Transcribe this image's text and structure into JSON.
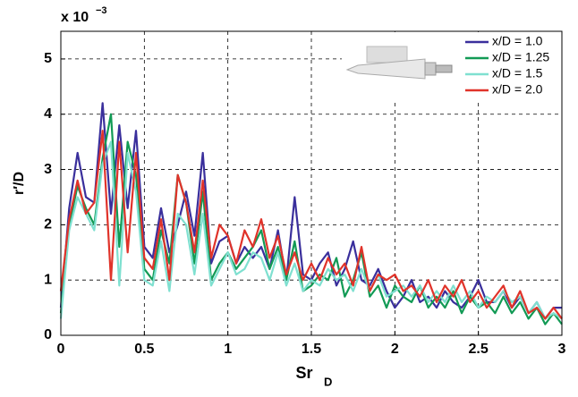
{
  "chart_data": {
    "type": "line",
    "ylabel": "r′/D",
    "xlabel": "Sr",
    "xlabel_subscript": "D",
    "y_multiplier": "x 10",
    "y_multiplier_exponent": "−3",
    "x": [
      0,
      0.05,
      0.1,
      0.15,
      0.2,
      0.25,
      0.3,
      0.35,
      0.4,
      0.45,
      0.5,
      0.55,
      0.6,
      0.65,
      0.7,
      0.75,
      0.8,
      0.85,
      0.9,
      0.95,
      1,
      1.05,
      1.1,
      1.15,
      1.2,
      1.25,
      1.3,
      1.35,
      1.4,
      1.45,
      1.5,
      1.55,
      1.6,
      1.65,
      1.7,
      1.75,
      1.8,
      1.85,
      1.9,
      1.95,
      2,
      2.05,
      2.1,
      2.15,
      2.2,
      2.25,
      2.3,
      2.35,
      2.4,
      2.45,
      2.5,
      2.55,
      2.6,
      2.65,
      2.7,
      2.75,
      2.8,
      2.85,
      2.9,
      2.95,
      3
    ],
    "series": [
      {
        "name": "x/D = 1.0",
        "color": "#3a2f9c",
        "values": [
          0.5,
          2.3,
          3.3,
          2.5,
          2.4,
          4.2,
          2.2,
          3.8,
          2.3,
          3.7,
          1.6,
          1.4,
          2.3,
          1.5,
          2.0,
          2.6,
          1.8,
          3.3,
          1.3,
          1.7,
          1.8,
          1.3,
          1.6,
          1.4,
          1.6,
          1.2,
          1.9,
          1.0,
          2.5,
          1.1,
          1.0,
          1.3,
          1.5,
          0.9,
          1.2,
          1.7,
          1.0,
          0.9,
          1.2,
          0.8,
          0.5,
          0.7,
          1.0,
          0.6,
          0.7,
          0.5,
          0.8,
          0.6,
          0.5,
          0.7,
          1.0,
          0.6,
          0.6,
          0.8,
          0.5,
          0.7,
          0.4,
          0.6,
          0.3,
          0.5,
          0.5
        ]
      },
      {
        "name": "x/D = 1.25",
        "color": "#129a55",
        "values": [
          0.4,
          2.0,
          2.7,
          2.3,
          2.0,
          3.2,
          4.0,
          1.6,
          3.5,
          2.9,
          1.2,
          1.0,
          1.9,
          1.3,
          2.9,
          2.4,
          1.3,
          2.6,
          1.0,
          1.3,
          1.5,
          1.2,
          1.4,
          1.6,
          1.9,
          1.2,
          1.6,
          1.0,
          1.7,
          0.8,
          0.9,
          1.1,
          1.0,
          1.4,
          0.7,
          1.0,
          1.5,
          0.7,
          0.9,
          0.5,
          0.9,
          0.7,
          0.6,
          0.9,
          0.5,
          0.7,
          0.5,
          0.8,
          0.4,
          0.7,
          0.5,
          0.6,
          0.4,
          0.7,
          0.4,
          0.6,
          0.3,
          0.5,
          0.2,
          0.4,
          0.2
        ]
      },
      {
        "name": "x/D = 1.5",
        "color": "#7fe0d0",
        "values": [
          0.3,
          1.9,
          2.5,
          2.2,
          1.9,
          3.1,
          3.5,
          0.9,
          3.3,
          2.6,
          1.0,
          0.9,
          1.7,
          0.8,
          2.2,
          2.0,
          1.1,
          2.2,
          0.9,
          1.2,
          1.5,
          1.1,
          1.2,
          1.5,
          1.4,
          1.0,
          1.5,
          0.9,
          1.3,
          0.8,
          1.0,
          0.9,
          1.2,
          1.0,
          1.1,
          0.8,
          1.2,
          0.8,
          1.1,
          0.7,
          0.8,
          0.9,
          0.7,
          0.9,
          0.6,
          0.8,
          0.6,
          0.9,
          0.6,
          0.8,
          0.5,
          0.7,
          0.6,
          0.8,
          0.6,
          0.7,
          0.4,
          0.6,
          0.3,
          0.4,
          0.3
        ]
      },
      {
        "name": "x/D = 2.0",
        "color": "#e0332a",
        "values": [
          0.8,
          2.1,
          2.8,
          2.2,
          2.4,
          3.7,
          1.0,
          3.5,
          1.5,
          3.3,
          1.4,
          1.2,
          2.1,
          1.0,
          2.9,
          2.4,
          1.5,
          2.8,
          1.4,
          2.0,
          1.8,
          1.3,
          1.9,
          1.6,
          2.1,
          1.4,
          1.8,
          1.1,
          1.5,
          1.0,
          1.3,
          1.0,
          1.4,
          1.1,
          1.3,
          0.9,
          1.6,
          0.8,
          1.1,
          1.0,
          1.1,
          0.8,
          0.9,
          0.7,
          1.0,
          0.6,
          0.9,
          0.7,
          1.0,
          0.6,
          0.8,
          0.5,
          0.7,
          0.9,
          0.5,
          0.8,
          0.4,
          0.5,
          0.3,
          0.5,
          0.3
        ]
      }
    ],
    "xlim": [
      0,
      3
    ],
    "xticks": [
      0,
      0.5,
      1,
      1.5,
      2,
      2.5,
      3
    ],
    "ylim": [
      0,
      5.5
    ],
    "yticks": [
      0,
      1,
      2,
      3,
      4,
      5
    ],
    "grid": true,
    "legend": "upper right"
  }
}
